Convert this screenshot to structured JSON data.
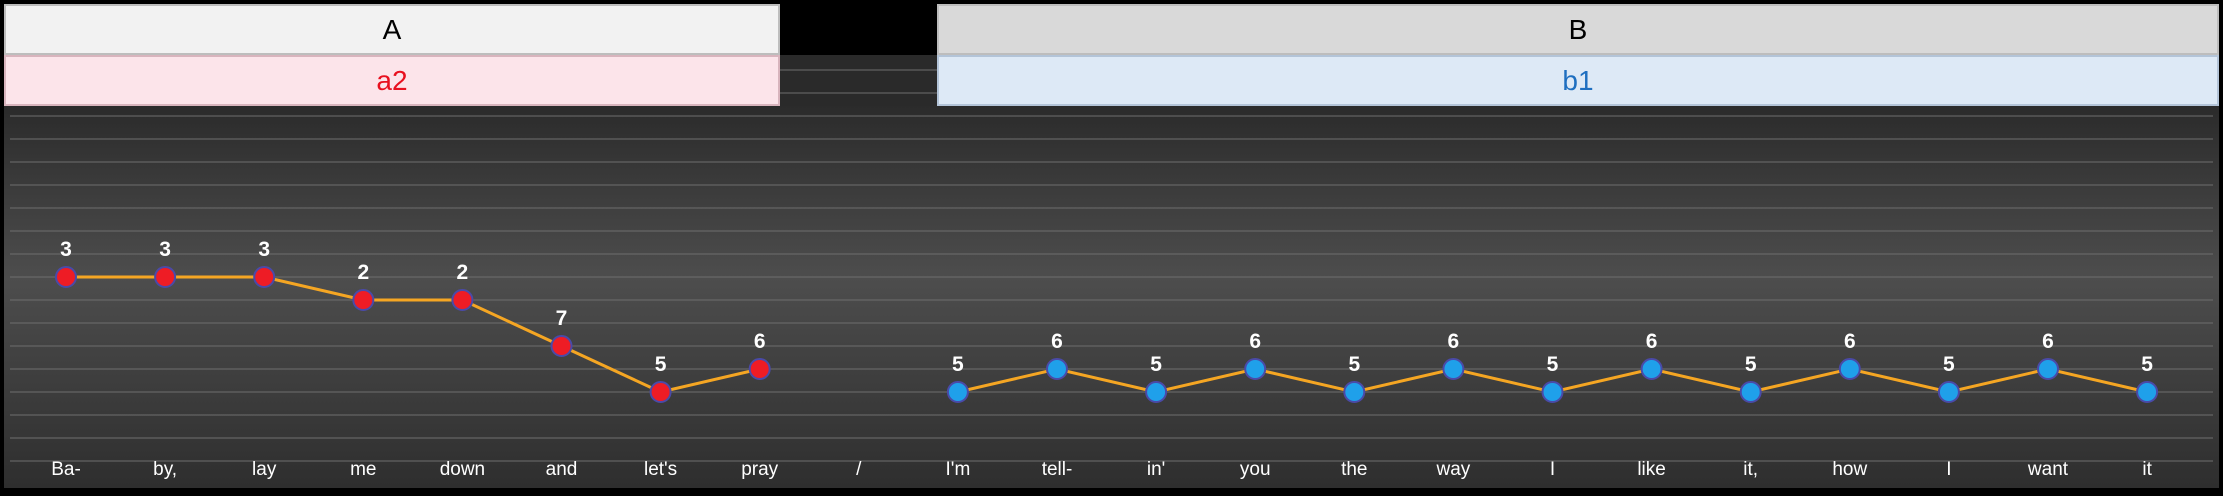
{
  "sections": [
    {
      "title": "A",
      "subtitle": "a2"
    },
    {
      "title": "B",
      "subtitle": "b1"
    }
  ],
  "colors": {
    "line": "#f5a623",
    "marker_a": "#ee1c25",
    "marker_b": "#1fa0ea",
    "marker_edge": "#4a4aa8",
    "title_a_text": "#e8101f",
    "title_b_text": "#1f6fc0",
    "label_text": "#ffffff"
  },
  "chart_data": {
    "type": "line",
    "title": "",
    "xlabel": "",
    "ylabel": "",
    "grid": true,
    "categories": [
      "Ba-",
      "by,",
      "lay",
      "me",
      "down",
      "and",
      "let's",
      "pray",
      "/",
      "I'm",
      "tell-",
      "in'",
      "you",
      "the",
      "way",
      "I",
      "like",
      "it,",
      "how",
      "I",
      "want",
      "it"
    ],
    "series": [
      {
        "points": [
          {
            "x": "Ba-",
            "y": 3,
            "label": "3"
          },
          {
            "x": "by,",
            "y": 3,
            "label": "3"
          },
          {
            "x": "lay",
            "y": 3,
            "label": "3"
          },
          {
            "x": "me",
            "y": 2,
            "label": "2"
          },
          {
            "x": "down",
            "y": 2,
            "label": "2"
          },
          {
            "x": "and",
            "y": 0,
            "label": "7"
          },
          {
            "x": "let's",
            "y": -2,
            "label": "5"
          },
          {
            "x": "pray",
            "y": -1,
            "label": "6"
          }
        ]
      },
      {
        "points": [
          {
            "x": "I'm",
            "y": -2,
            "label": "5"
          },
          {
            "x": "tell-",
            "y": -1,
            "label": "6"
          },
          {
            "x": "in'",
            "y": -2,
            "label": "5"
          },
          {
            "x": "you",
            "y": -1,
            "label": "6"
          },
          {
            "x": "the",
            "y": -2,
            "label": "5"
          },
          {
            "x": "way",
            "y": -1,
            "label": "6"
          },
          {
            "x": "I",
            "y": -2,
            "label": "5"
          },
          {
            "x": "like",
            "y": -1,
            "label": "6"
          },
          {
            "x": "it,",
            "y": -2,
            "label": "5"
          },
          {
            "x": "how",
            "y": -1,
            "label": "6"
          },
          {
            "x": "I",
            "y": -2,
            "label": "5"
          },
          {
            "x": "want",
            "y": -1,
            "label": "6"
          },
          {
            "x": "it",
            "y": -2,
            "label": "5"
          }
        ]
      }
    ]
  }
}
